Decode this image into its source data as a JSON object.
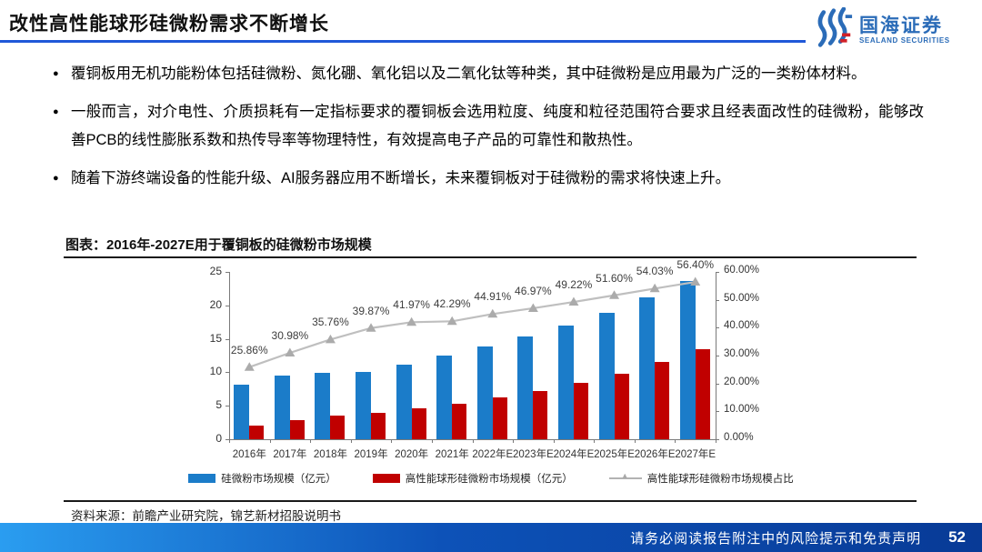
{
  "header": {
    "title": "改性高性能球形硅微粉需求不断增长",
    "logo_cn": "国海证券",
    "logo_en": "SEALAND SECURITIES"
  },
  "bullets": [
    "覆铜板用无机功能粉体包括硅微粉、氮化硼、氧化铝以及二氧化钛等种类，其中硅微粉是应用最为广泛的一类粉体材料。",
    "一般而言，对介电性、介质损耗有一定指标要求的覆铜板会选用粒度、纯度和粒径范围符合要求且经表面改性的硅微粉，能够改善PCB的线性膨胀系数和热传导率等物理特性，有效提高电子产品的可靠性和散热性。",
    "随着下游终端设备的性能升级、AI服务器应用不断增长，未来覆铜板对于硅微粉的需求将快速上升。"
  ],
  "figure": {
    "label": "图表：2016年-2027E用于覆铜板的硅微粉市场规模",
    "source": "资料来源：前瞻产业研究院，锦艺新材招股说明书"
  },
  "footer": {
    "disclaimer": "请务必阅读报告附注中的风险提示和免责声明",
    "page": "52"
  },
  "colors": {
    "accent_underline": "#2058D8",
    "footer_gradient_left": "#2A9DF0",
    "footer_gradient_right": "#083A96",
    "bar_blue": "#1B7CC9",
    "bar_red": "#C00000",
    "line_gray": "#BFBFBF",
    "marker_gray": "#ABABAB",
    "logo_blue": "#2B6CB8",
    "logo_red": "#D22027"
  },
  "chart_data": {
    "type": "bar",
    "subtype": "combo dual-axis bar + line",
    "categories": [
      "2016年",
      "2017年",
      "2018年",
      "2019年",
      "2020年",
      "2021年",
      "2022年E",
      "2023年E",
      "2024年E",
      "2025年E",
      "2026年E",
      "2027年E"
    ],
    "series": [
      {
        "name": "硅微粉市场规模（亿元）",
        "type": "bar",
        "axis": "left",
        "color": "#1B7CC9",
        "values": [
          8.2,
          9.5,
          9.9,
          10.0,
          11.1,
          12.5,
          13.8,
          15.3,
          17.0,
          18.9,
          21.2,
          23.7
        ]
      },
      {
        "name": "高性能球形硅微粉市场规模（亿元）",
        "type": "bar",
        "axis": "left",
        "color": "#C00000",
        "values": [
          2.1,
          2.9,
          3.5,
          4.0,
          4.6,
          5.3,
          6.2,
          7.2,
          8.4,
          9.8,
          11.5,
          13.4
        ]
      },
      {
        "name": "高性能球形硅微粉市场规模占比",
        "type": "line",
        "axis": "right",
        "color": "#BFBFBF",
        "marker": "triangle",
        "values": [
          25.86,
          30.98,
          35.76,
          39.87,
          41.97,
          42.29,
          44.91,
          46.97,
          49.22,
          51.6,
          54.03,
          56.4
        ],
        "labels": [
          "25.86%",
          "30.98%",
          "35.76%",
          "39.87%",
          "41.97%",
          "42.29%",
          "44.91%",
          "46.97%",
          "49.22%",
          "51.60%",
          "54.03%",
          "56.40%"
        ]
      }
    ],
    "left_axis": {
      "min": 0,
      "max": 25,
      "tick_step": 5,
      "ticks": [
        "0",
        "5",
        "10",
        "15",
        "20",
        "25"
      ]
    },
    "right_axis": {
      "min": 0,
      "max": 60,
      "tick_step": 10,
      "ticks": [
        "0.00%",
        "10.00%",
        "20.00%",
        "30.00%",
        "40.00%",
        "50.00%",
        "60.00%"
      ]
    },
    "grid": false,
    "legend_position": "bottom"
  }
}
